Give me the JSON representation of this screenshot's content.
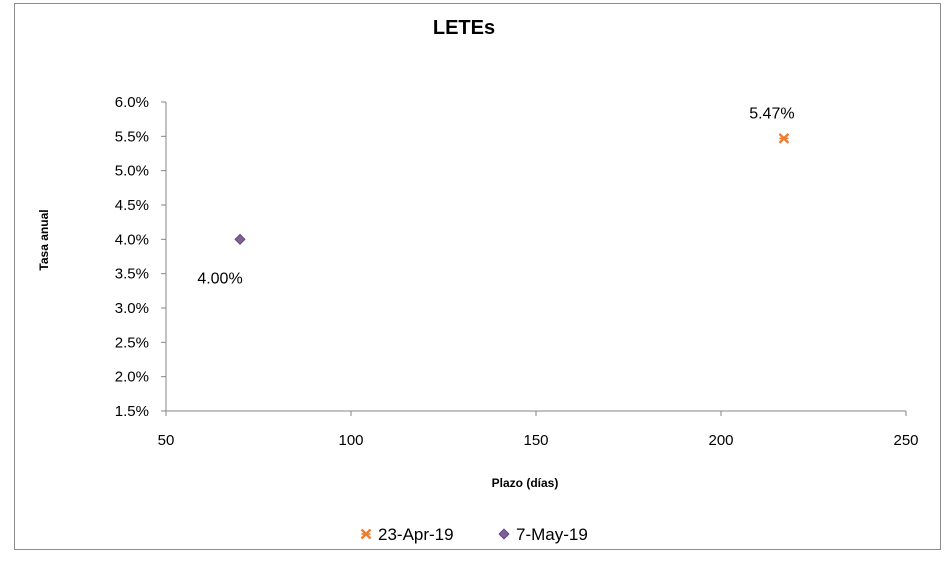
{
  "chart_data": {
    "type": "scatter",
    "title": "LETEs",
    "xlabel": "Plazo (días)",
    "ylabel": "Tasa anual",
    "xlim": [
      50,
      250
    ],
    "ylim": [
      0.015,
      0.06
    ],
    "x_ticks": [
      "50",
      "100",
      "150",
      "200",
      "250"
    ],
    "y_ticks": [
      "1.5%",
      "2.0%",
      "2.5%",
      "3.0%",
      "3.5%",
      "4.0%",
      "4.5%",
      "5.0%",
      "5.5%",
      "6.0%"
    ],
    "grid": false,
    "legend_position": "bottom",
    "series": [
      {
        "name": "23-Apr-19",
        "marker": "x",
        "color": "#ED7D31",
        "points": [
          {
            "x": 217,
            "y": 0.0547,
            "label": "5.47%"
          }
        ]
      },
      {
        "name": "7-May-19",
        "marker": "diamond",
        "color": "#7E5F99",
        "points": [
          {
            "x": 70,
            "y": 0.04,
            "label": "4.00%"
          }
        ]
      }
    ]
  }
}
